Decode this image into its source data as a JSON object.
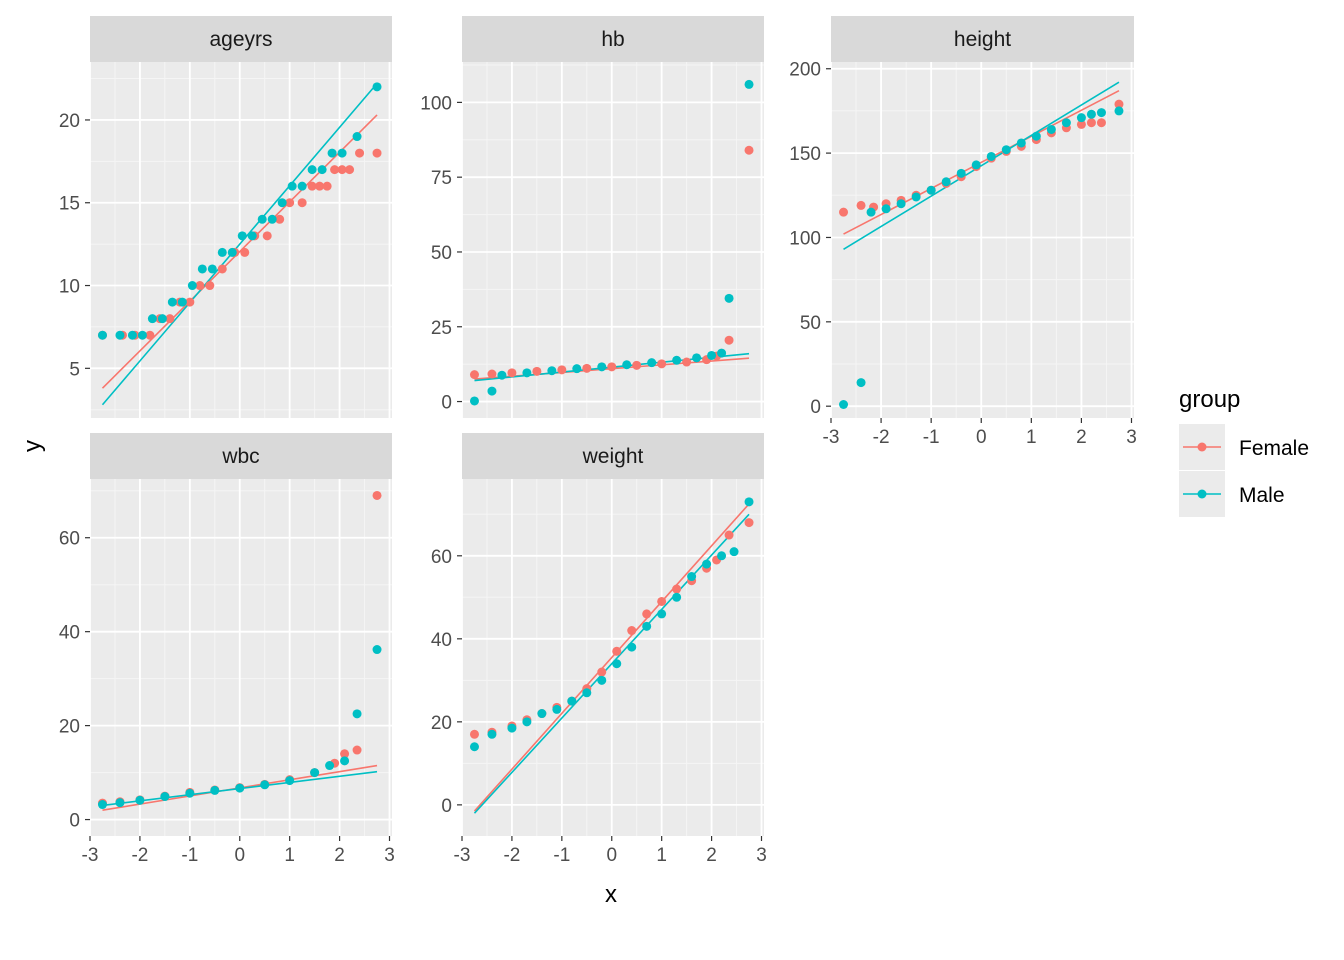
{
  "chart_data": {
    "type": "scatter",
    "xlabel": "x",
    "ylabel": "y",
    "legend": {
      "title": "group",
      "placement": "right",
      "entries": [
        {
          "name": "Female",
          "color": "#F8766D"
        },
        {
          "name": "Male",
          "color": "#00BFC4"
        }
      ]
    },
    "x_ticks": [
      -3,
      -2,
      -1,
      0,
      1,
      2,
      3
    ],
    "x_tick_labels": [
      "-3",
      "-2",
      "-1",
      "0",
      "1",
      "2",
      "3"
    ],
    "panels": [
      {
        "title": "ageyrs",
        "xlim": [
          -3.0,
          3.05
        ],
        "ylim": [
          2.0,
          23.5
        ],
        "y_ticks": [
          5,
          10,
          15,
          20
        ],
        "y_tick_labels": [
          "5",
          "10",
          "15",
          "20"
        ],
        "series": [
          {
            "name": "Female",
            "line": [
              [
                -2.75,
                3.8
              ],
              [
                2.75,
                20.3
              ]
            ],
            "points": [
              [
                -2.75,
                7
              ],
              [
                -2.35,
                7
              ],
              [
                -2.1,
                7
              ],
              [
                -1.8,
                7
              ],
              [
                -1.6,
                8
              ],
              [
                -1.4,
                8
              ],
              [
                -1.2,
                9
              ],
              [
                -1.0,
                9
              ],
              [
                -0.8,
                10
              ],
              [
                -0.6,
                10
              ],
              [
                -0.35,
                11
              ],
              [
                -0.1,
                12
              ],
              [
                0.1,
                12
              ],
              [
                0.3,
                13
              ],
              [
                0.55,
                13
              ],
              [
                0.8,
                14
              ],
              [
                1.0,
                15
              ],
              [
                1.25,
                15
              ],
              [
                1.45,
                16
              ],
              [
                1.6,
                16
              ],
              [
                1.75,
                16
              ],
              [
                1.9,
                17
              ],
              [
                2.05,
                17
              ],
              [
                2.2,
                17
              ],
              [
                2.4,
                18
              ],
              [
                2.75,
                18
              ]
            ]
          },
          {
            "name": "Male",
            "line": [
              [
                -2.75,
                2.8
              ],
              [
                2.75,
                22.2
              ]
            ],
            "points": [
              [
                -2.75,
                7
              ],
              [
                -2.4,
                7
              ],
              [
                -2.15,
                7
              ],
              [
                -1.95,
                7
              ],
              [
                -1.75,
                8
              ],
              [
                -1.55,
                8
              ],
              [
                -1.35,
                9
              ],
              [
                -1.15,
                9
              ],
              [
                -0.95,
                10
              ],
              [
                -0.75,
                11
              ],
              [
                -0.55,
                11
              ],
              [
                -0.35,
                12
              ],
              [
                -0.15,
                12
              ],
              [
                0.05,
                13
              ],
              [
                0.25,
                13
              ],
              [
                0.45,
                14
              ],
              [
                0.65,
                14
              ],
              [
                0.85,
                15
              ],
              [
                1.05,
                16
              ],
              [
                1.25,
                16
              ],
              [
                1.45,
                17
              ],
              [
                1.65,
                17
              ],
              [
                1.85,
                18
              ],
              [
                2.05,
                18
              ],
              [
                2.35,
                19
              ],
              [
                2.75,
                22
              ]
            ]
          }
        ]
      },
      {
        "title": "hb",
        "xlim": [
          -3.0,
          3.05
        ],
        "ylim": [
          -5.5,
          113.5
        ],
        "y_ticks": [
          0,
          25,
          50,
          75,
          100
        ],
        "y_tick_labels": [
          "0",
          "25",
          "50",
          "75",
          "100"
        ],
        "series": [
          {
            "name": "Female",
            "line": [
              [
                -2.75,
                7.5
              ],
              [
                2.75,
                14.5
              ]
            ],
            "points": [
              [
                -2.75,
                9
              ],
              [
                -2.4,
                9.2
              ],
              [
                -2.0,
                9.6
              ],
              [
                -1.5,
                10.1
              ],
              [
                -1.0,
                10.6
              ],
              [
                -0.5,
                11.1
              ],
              [
                0,
                11.6
              ],
              [
                0.5,
                12.1
              ],
              [
                1.0,
                12.6
              ],
              [
                1.5,
                13.2
              ],
              [
                1.9,
                14.0
              ],
              [
                2.1,
                15.2
              ],
              [
                2.35,
                20.5
              ],
              [
                2.75,
                84
              ]
            ]
          },
          {
            "name": "Male",
            "line": [
              [
                -2.75,
                7.0
              ],
              [
                2.75,
                16.0
              ]
            ],
            "points": [
              [
                -2.75,
                0.2
              ],
              [
                -2.4,
                3.5
              ],
              [
                -2.2,
                8.8
              ],
              [
                -1.7,
                9.6
              ],
              [
                -1.2,
                10.3
              ],
              [
                -0.7,
                11.0
              ],
              [
                -0.2,
                11.6
              ],
              [
                0.3,
                12.3
              ],
              [
                0.8,
                13.0
              ],
              [
                1.3,
                13.8
              ],
              [
                1.7,
                14.6
              ],
              [
                2.0,
                15.4
              ],
              [
                2.2,
                16.2
              ],
              [
                2.35,
                34.5
              ],
              [
                2.75,
                106
              ]
            ]
          }
        ]
      },
      {
        "title": "height",
        "xlim": [
          -3.0,
          3.05
        ],
        "ylim": [
          -7.0,
          204.0
        ],
        "y_ticks": [
          0,
          50,
          100,
          150,
          200
        ],
        "y_tick_labels": [
          "0",
          "50",
          "100",
          "150",
          "200"
        ],
        "series": [
          {
            "name": "Female",
            "line": [
              [
                -2.75,
                102.0
              ],
              [
                2.75,
                187.0
              ]
            ],
            "points": [
              [
                -2.75,
                115
              ],
              [
                -2.4,
                119
              ],
              [
                -2.15,
                118
              ],
              [
                -1.9,
                120
              ],
              [
                -1.6,
                122
              ],
              [
                -1.3,
                125
              ],
              [
                -1.0,
                128
              ],
              [
                -0.7,
                132
              ],
              [
                -0.4,
                136
              ],
              [
                -0.1,
                142
              ],
              [
                0.2,
                147
              ],
              [
                0.5,
                151
              ],
              [
                0.8,
                154
              ],
              [
                1.1,
                158
              ],
              [
                1.4,
                162
              ],
              [
                1.7,
                165
              ],
              [
                2.0,
                167
              ],
              [
                2.2,
                168
              ],
              [
                2.4,
                168
              ],
              [
                2.75,
                179
              ]
            ]
          },
          {
            "name": "Male",
            "line": [
              [
                -2.75,
                93.0
              ],
              [
                2.75,
                192.0
              ]
            ],
            "points": [
              [
                -2.75,
                1
              ],
              [
                -2.4,
                14
              ],
              [
                -2.2,
                115
              ],
              [
                -1.9,
                117
              ],
              [
                -1.6,
                120
              ],
              [
                -1.3,
                124
              ],
              [
                -1.0,
                128
              ],
              [
                -0.7,
                133
              ],
              [
                -0.4,
                138
              ],
              [
                -0.1,
                143
              ],
              [
                0.2,
                148
              ],
              [
                0.5,
                152
              ],
              [
                0.8,
                156
              ],
              [
                1.1,
                160
              ],
              [
                1.4,
                164
              ],
              [
                1.7,
                168
              ],
              [
                2.0,
                171
              ],
              [
                2.2,
                173
              ],
              [
                2.4,
                174
              ],
              [
                2.75,
                175
              ]
            ]
          }
        ]
      },
      {
        "title": "wbc",
        "xlim": [
          -3.0,
          3.05
        ],
        "ylim": [
          -3.5,
          72.5
        ],
        "y_ticks": [
          0,
          20,
          40,
          60
        ],
        "y_tick_labels": [
          "0",
          "20",
          "40",
          "60"
        ],
        "series": [
          {
            "name": "Female",
            "line": [
              [
                -2.75,
                2.0
              ],
              [
                2.75,
                11.5
              ]
            ],
            "points": [
              [
                -2.75,
                3.5
              ],
              [
                -2.4,
                3.8
              ],
              [
                -2.0,
                4.2
              ],
              [
                -1.5,
                5.0
              ],
              [
                -1.0,
                5.8
              ],
              [
                -0.5,
                6.3
              ],
              [
                0,
                6.8
              ],
              [
                0.5,
                7.5
              ],
              [
                1.0,
                8.5
              ],
              [
                1.5,
                10.0
              ],
              [
                1.9,
                12.0
              ],
              [
                2.1,
                14.0
              ],
              [
                2.35,
                14.8
              ],
              [
                2.75,
                69
              ]
            ]
          },
          {
            "name": "Male",
            "line": [
              [
                -2.75,
                3.0
              ],
              [
                2.75,
                10.2
              ]
            ],
            "points": [
              [
                -2.75,
                3.2
              ],
              [
                -2.4,
                3.6
              ],
              [
                -2.0,
                4.1
              ],
              [
                -1.5,
                4.9
              ],
              [
                -1.0,
                5.6
              ],
              [
                -0.5,
                6.2
              ],
              [
                0,
                6.7
              ],
              [
                0.5,
                7.4
              ],
              [
                1.0,
                8.3
              ],
              [
                1.5,
                10.0
              ],
              [
                1.8,
                11.5
              ],
              [
                2.1,
                12.5
              ],
              [
                2.35,
                22.5
              ],
              [
                2.75,
                36.2
              ]
            ]
          }
        ]
      },
      {
        "title": "weight",
        "xlim": [
          -3.0,
          3.05
        ],
        "ylim": [
          -7.5,
          78.5
        ],
        "y_ticks": [
          0,
          20,
          40,
          60
        ],
        "y_tick_labels": [
          "0",
          "20",
          "40",
          "60"
        ],
        "series": [
          {
            "name": "Female",
            "line": [
              [
                -2.75,
                -1.5
              ],
              [
                2.75,
                72.5
              ]
            ],
            "points": [
              [
                -2.75,
                17
              ],
              [
                -2.4,
                17.5
              ],
              [
                -2.0,
                19
              ],
              [
                -1.7,
                20.5
              ],
              [
                -1.4,
                22
              ],
              [
                -1.1,
                23.5
              ],
              [
                -0.8,
                25
              ],
              [
                -0.5,
                28
              ],
              [
                -0.2,
                32
              ],
              [
                0.1,
                37
              ],
              [
                0.4,
                42
              ],
              [
                0.7,
                46
              ],
              [
                1.0,
                49
              ],
              [
                1.3,
                52
              ],
              [
                1.6,
                54
              ],
              [
                1.9,
                57
              ],
              [
                2.1,
                59
              ],
              [
                2.35,
                65
              ],
              [
                2.75,
                68
              ]
            ]
          },
          {
            "name": "Male",
            "line": [
              [
                -2.75,
                -2.0
              ],
              [
                2.75,
                70.0
              ]
            ],
            "points": [
              [
                -2.75,
                14
              ],
              [
                -2.4,
                17
              ],
              [
                -2.0,
                18.5
              ],
              [
                -1.7,
                20
              ],
              [
                -1.4,
                22
              ],
              [
                -1.1,
                23
              ],
              [
                -0.8,
                25
              ],
              [
                -0.5,
                27
              ],
              [
                -0.2,
                30
              ],
              [
                0.1,
                34
              ],
              [
                0.4,
                38
              ],
              [
                0.7,
                43
              ],
              [
                1.0,
                46
              ],
              [
                1.3,
                50
              ],
              [
                1.6,
                55
              ],
              [
                1.9,
                58
              ],
              [
                2.2,
                60
              ],
              [
                2.45,
                61
              ],
              [
                2.75,
                73
              ]
            ]
          }
        ]
      }
    ]
  }
}
